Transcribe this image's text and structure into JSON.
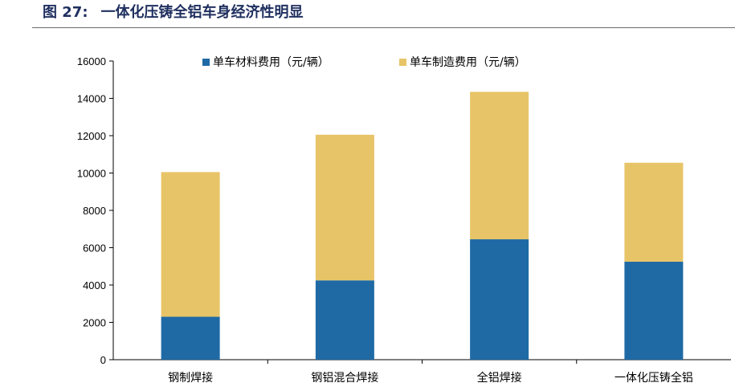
{
  "figure": {
    "label": "图 27:",
    "title": "一体化压铸全铝车身经济性明显"
  },
  "colors": {
    "material": "#1f6aa5",
    "manufacturing": "#e8c468",
    "title": "#1f2f5f",
    "axis": "#000000"
  },
  "chart_data": {
    "type": "bar",
    "stacked": true,
    "title": "",
    "xlabel": "",
    "ylabel": "",
    "categories": [
      "钢制焊接",
      "钢铝混合焊接",
      "全铝焊接",
      "一体化压铸全铝"
    ],
    "series": [
      {
        "name": "单车材料费用（元/辆）",
        "values": [
          2300,
          4250,
          6450,
          5250
        ]
      },
      {
        "name": "单车制造费用（元/辆）",
        "values": [
          7750,
          7800,
          7900,
          5300
        ]
      }
    ],
    "ylim": [
      0,
      16000
    ],
    "yticks": [
      "0",
      "2000",
      "4000",
      "6000",
      "8000",
      "10000",
      "12000",
      "14000",
      "16000"
    ],
    "grid": false,
    "legend": "top"
  }
}
